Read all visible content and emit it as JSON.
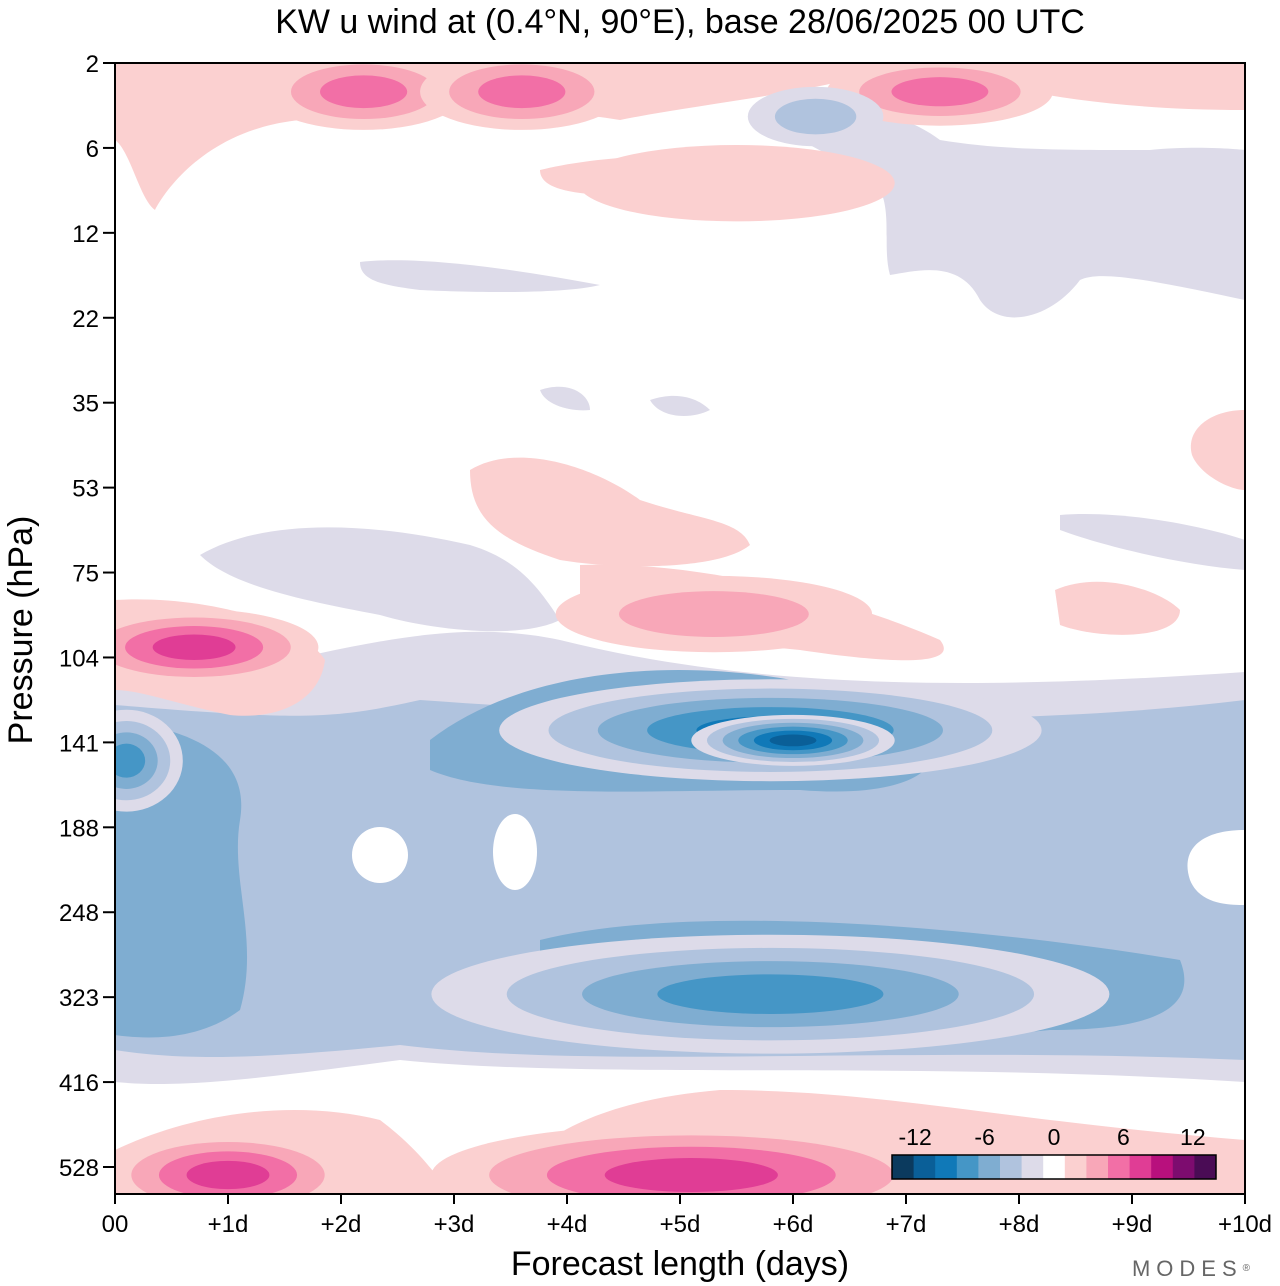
{
  "chart_data": {
    "type": "heatmap",
    "title": "KW u wind at (0.4°N, 90°E),  base 28/06/2025  00 UTC",
    "xlabel": "Forecast length (days)",
    "ylabel": "Pressure (hPa)",
    "x_ticks": [
      "00",
      "+1d",
      "+2d",
      "+3d",
      "+4d",
      "+5d",
      "+6d",
      "+7d",
      "+8d",
      "+9d",
      "+10d"
    ],
    "y_ticks": [
      "2",
      "6",
      "12",
      "22",
      "35",
      "53",
      "75",
      "104",
      "141",
      "188",
      "248",
      "323",
      "416",
      "528"
    ],
    "xlim": [
      0,
      10
    ],
    "colorbar": {
      "labels": [
        "-12",
        "-6",
        "0",
        "6",
        "12"
      ],
      "levels": [
        -14,
        -12,
        -10,
        -8,
        -6,
        -4,
        -2,
        2,
        4,
        6,
        8,
        10,
        12,
        14
      ],
      "colors": [
        "#0b3a5e",
        "#0a5f98",
        "#1079b8",
        "#4596c6",
        "#7fadd1",
        "#b0c3de",
        "#dddbe9",
        "#ffffff",
        "#fbd0d0",
        "#f8a7b8",
        "#f26fa6",
        "#e03d95",
        "#b8107d",
        "#7d0c6f",
        "#4a0c55"
      ],
      "placement": "bottom-right"
    },
    "features": [
      {
        "x": 2.2,
        "p": 2.9,
        "rx": 0.9,
        "ry": 0.45,
        "value": 6
      },
      {
        "x": 3.6,
        "p": 2.9,
        "rx": 0.9,
        "ry": 0.45,
        "value": 6
      },
      {
        "x": 7.3,
        "p": 2.9,
        "rx": 1.0,
        "ry": 0.4,
        "value": 6
      },
      {
        "x": 6.2,
        "p": 4.0,
        "rx": 0.6,
        "ry": 0.35,
        "value": -5
      },
      {
        "x": 5.5,
        "p": 8.0,
        "rx": 1.4,
        "ry": 0.45,
        "value": 3.5
      },
      {
        "x": 0.7,
        "p": 100,
        "rx": 1.1,
        "ry": 0.45,
        "value": 8
      },
      {
        "x": 5.3,
        "p": 88,
        "rx": 1.4,
        "ry": 0.45,
        "value": 5
      },
      {
        "x": 5.8,
        "p": 135,
        "rx": 2.4,
        "ry": 0.6,
        "value": -10
      },
      {
        "x": 6.0,
        "p": 140,
        "rx": 0.9,
        "ry": 0.3,
        "value": -13
      },
      {
        "x": 0.1,
        "p": 150,
        "rx": 0.5,
        "ry": 0.6,
        "value": -9
      },
      {
        "x": 5.8,
        "p": 320,
        "rx": 3.0,
        "ry": 0.7,
        "value": -8
      },
      {
        "x": 1.0,
        "p": 540,
        "rx": 1.1,
        "ry": 0.5,
        "value": 8
      },
      {
        "x": 5.1,
        "p": 540,
        "rx": 2.3,
        "ry": 0.6,
        "value": 9
      }
    ]
  },
  "brand": "MODES",
  "brand_mark": "®"
}
